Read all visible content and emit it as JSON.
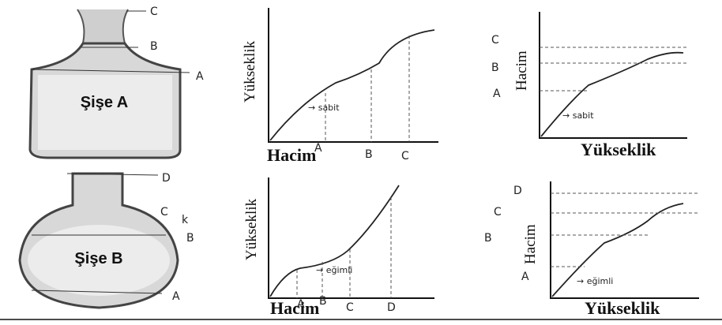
{
  "bottle_a": {
    "label": "Şişe A",
    "marks": [
      "C",
      "B",
      "A"
    ]
  },
  "bottle_b": {
    "label": "Şişe B",
    "marks": [
      "D",
      "C",
      "k",
      "B",
      "A"
    ]
  },
  "graphs": [
    {
      "y_axis": "Yükseklik",
      "x_axis": "Hacim",
      "marks": [
        "A",
        "B",
        "C"
      ],
      "note": "→ sabit"
    },
    {
      "y_axis": "Yükseklik",
      "x_axis": "Hacim",
      "marks": [
        "A",
        "B",
        "C",
        "D"
      ],
      "note": "→ eğimli"
    },
    {
      "y_axis": "Hacim",
      "x_axis": "Yükseklik",
      "marks": [
        "C",
        "B",
        "A"
      ],
      "note": "→ sabit"
    },
    {
      "y_axis": "Hacim",
      "x_axis": "Yükseklik",
      "marks": [
        "D",
        "C",
        "B",
        "A"
      ],
      "note": "→ eğimli"
    }
  ]
}
